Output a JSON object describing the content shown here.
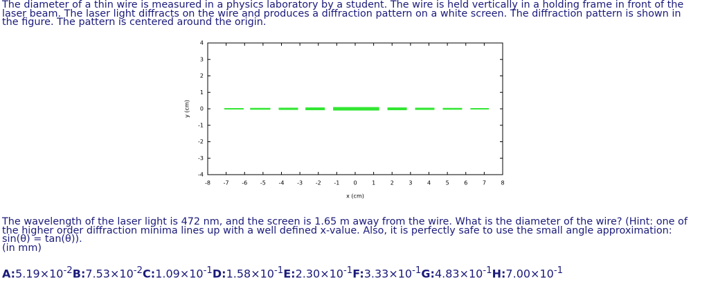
{
  "problem": {
    "intro": [
      "The diameter of a thin wire is measured in a physics laboratory by a student. The wire is held vertically in a holding frame in front of the",
      "laser beam. The laser light diffracts on the wire and produces a diffraction pattern on a white screen. The diffraction pattern is shown in",
      "the figure. The pattern is centered around the origin."
    ],
    "question": [
      "The wavelength of the laser light is 472 nm, and the screen is 1.65 m away from the wire. What is the diameter of the wire? (Hint: one of",
      "the higher order diffraction minima lines up with a well defined x-value. Also, it is perfectly safe to use the small angle approximation:",
      "sin(θ) = tan(θ)).",
      "(in mm)"
    ]
  },
  "chart_data": {
    "type": "segments",
    "x_label": "x (cm)",
    "y_label": "y (cm)",
    "color": "#33e633",
    "segments": [
      {
        "x": [
          -7.1,
          -6.05
        ],
        "y": 0,
        "intensity": 0.25
      },
      {
        "x": [
          -5.7,
          -4.6
        ],
        "y": 0,
        "intensity": 0.4
      },
      {
        "x": [
          -4.15,
          -3.1
        ],
        "y": 0,
        "intensity": 0.55
      },
      {
        "x": [
          -2.7,
          -1.65
        ],
        "y": 0,
        "intensity": 0.75
      },
      {
        "x": [
          -1.2,
          1.3
        ],
        "y": 0,
        "intensity": 1
      },
      {
        "x": [
          1.75,
          2.8
        ],
        "y": 0,
        "intensity": 0.75
      },
      {
        "x": [
          3.25,
          4.3
        ],
        "y": 0,
        "intensity": 0.55
      },
      {
        "x": [
          4.75,
          5.8
        ],
        "y": 0,
        "intensity": 0.4
      },
      {
        "x": [
          6.25,
          7.25
        ],
        "y": 0,
        "intensity": 0.25
      }
    ],
    "xlim": [
      -8,
      8
    ],
    "xticks": [
      -8,
      -7,
      -6,
      -5,
      -4,
      -3,
      -2,
      -1,
      0,
      1,
      2,
      3,
      4,
      5,
      6,
      7,
      8
    ],
    "ylim": [
      -4,
      4
    ],
    "yticks": [
      -4,
      -3,
      -2,
      -1,
      0,
      1,
      2,
      3,
      4
    ]
  },
  "choices": [
    {
      "letter": "A:",
      "mantissa": "5.19×10",
      "exponent": "-2"
    },
    {
      "letter": "B:",
      "mantissa": "7.53×10",
      "exponent": "-2"
    },
    {
      "letter": "C:",
      "mantissa": "1.09×10",
      "exponent": "-1"
    },
    {
      "letter": "D:",
      "mantissa": "1.58×10",
      "exponent": "-1"
    },
    {
      "letter": "E:",
      "mantissa": "2.30×10",
      "exponent": "-1"
    },
    {
      "letter": "F:",
      "mantissa": "3.33×10",
      "exponent": "-1"
    },
    {
      "letter": "G:",
      "mantissa": "4.83×10",
      "exponent": "-1"
    },
    {
      "letter": "H:",
      "mantissa": "7.00×10",
      "exponent": "-1"
    }
  ]
}
